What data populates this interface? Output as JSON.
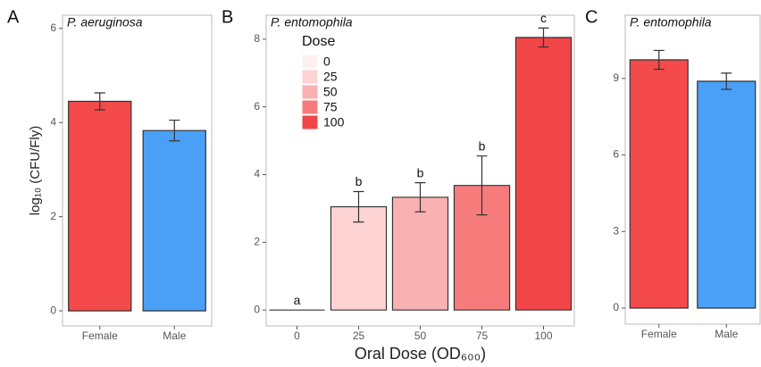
{
  "chart_data": [
    {
      "type": "bar",
      "panel_label": "A",
      "title": "P. aeruginosa",
      "y_label": "log₁₀ (CFU/Fly)",
      "categories": [
        "Female",
        "Male"
      ],
      "values": [
        4.45,
        3.83
      ],
      "errors": [
        0.18,
        0.22
      ],
      "colors": [
        "#f44a4c",
        "#4aa0f7"
      ],
      "ylim": [
        -0.32,
        6.28
      ],
      "yticks": [
        0,
        2,
        4,
        6
      ]
    },
    {
      "type": "bar",
      "panel_label": "B",
      "title": "P. entomophila",
      "x_label": "Oral Dose (OD₆₀₀)",
      "categories": [
        "0",
        "25",
        "50",
        "75",
        "100"
      ],
      "values": [
        0,
        3.05,
        3.33,
        3.68,
        8.05
      ],
      "errors": [
        0,
        0.45,
        0.43,
        0.87,
        0.28
      ],
      "annotations": [
        "a",
        "b",
        "b",
        "b",
        "c"
      ],
      "colors": [
        "#fff0f0",
        "#fdd3d3",
        "#fab1b1",
        "#f67c7c",
        "#f24547"
      ],
      "legend": {
        "title": "Dose",
        "labels": [
          "0",
          "25",
          "50",
          "75",
          "100"
        ]
      },
      "ylim": [
        -0.47,
        8.71
      ],
      "yticks": [
        0,
        2,
        4,
        6,
        8
      ]
    },
    {
      "type": "bar",
      "panel_label": "C",
      "title": "P. entomophila",
      "categories": [
        "Female",
        "Male"
      ],
      "values": [
        9.73,
        8.89
      ],
      "errors": [
        0.37,
        0.32
      ],
      "colors": [
        "#f44a4c",
        "#4aa0f7"
      ],
      "ylim": [
        -0.63,
        11.48
      ],
      "yticks": [
        0,
        3,
        6,
        9
      ]
    }
  ]
}
